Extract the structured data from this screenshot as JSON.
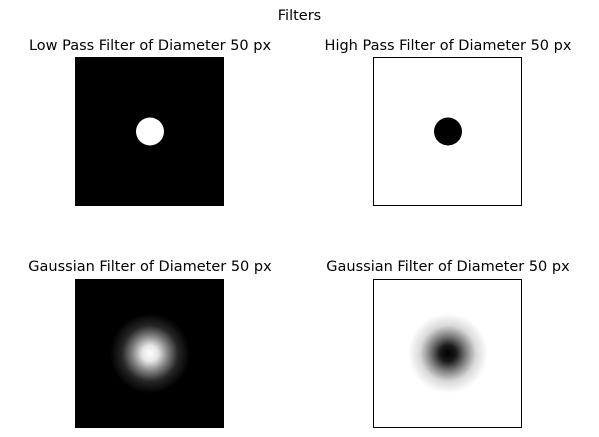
{
  "figure": {
    "title": "Filters"
  },
  "chart_data": [
    {
      "type": "heatmap",
      "title": "Low Pass Filter of Diameter 50 px",
      "filter": "ideal-low-pass",
      "diameter_px": 50,
      "center_value": 1,
      "background_value": 0,
      "colormap": "gray",
      "axes": "off"
    },
    {
      "type": "heatmap",
      "title": "High Pass Filter of Diameter 50 px",
      "filter": "ideal-high-pass",
      "diameter_px": 50,
      "center_value": 0,
      "background_value": 1,
      "colormap": "gray",
      "axes": "off"
    },
    {
      "type": "heatmap",
      "title": "Gaussian Filter of Diameter 50 px",
      "filter": "gaussian-low-pass",
      "diameter_px": 50,
      "center_value": 1,
      "background_value": 0,
      "colormap": "gray",
      "axes": "off"
    },
    {
      "type": "heatmap",
      "title": "Gaussian Filter of Diameter 50 px",
      "filter": "gaussian-high-pass",
      "diameter_px": 50,
      "center_value": 0,
      "background_value": 1,
      "colormap": "gray",
      "axes": "off"
    }
  ]
}
